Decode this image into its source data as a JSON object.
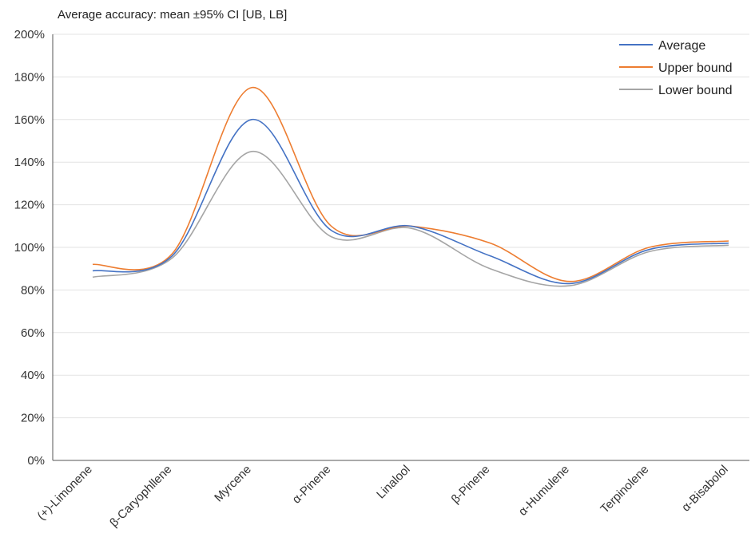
{
  "chart_data": {
    "type": "line",
    "title": "Average accuracy: mean ±95% CI [UB, LB]",
    "categories": [
      "(+)-Limonene",
      "β-Caryophllene",
      "Myrcene",
      "α-Pinene",
      "Linalool",
      "β-Pinene",
      "α-Humulene",
      "Terpinolene",
      "α-Bisabolol"
    ],
    "y_ticks": [
      "0%",
      "20%",
      "40%",
      "60%",
      "80%",
      "100%",
      "120%",
      "140%",
      "160%",
      "180%",
      "200%"
    ],
    "ylim": [
      0,
      200
    ],
    "y_unit": "%",
    "grid": true,
    "legend_position": "top-right",
    "series": [
      {
        "name": "Average",
        "color": "#4472c4",
        "values": [
          89,
          96,
          160,
          108,
          110,
          96,
          83,
          99,
          102
        ]
      },
      {
        "name": "Upper bound",
        "color": "#ed7d31",
        "values": [
          92,
          97,
          175,
          110,
          110,
          102,
          84,
          100,
          103
        ]
      },
      {
        "name": "Lower bound",
        "color": "#a5a5a5",
        "values": [
          86,
          95,
          145,
          105,
          109,
          90,
          82,
          98,
          101
        ]
      }
    ]
  }
}
